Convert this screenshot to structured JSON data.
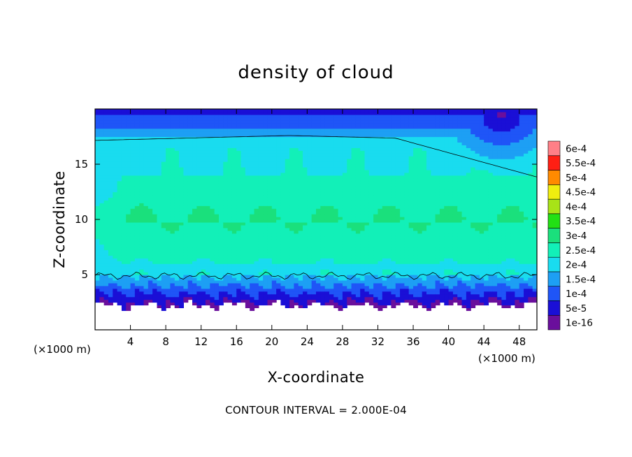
{
  "chart_data": {
    "type": "heatmap",
    "title": "density of cloud",
    "xlabel": "X-coordinate",
    "ylabel": "Z-coordinate",
    "x_unit": "(×1000 m)",
    "y_unit": "(×1000 m)",
    "xlim": [
      0,
      50
    ],
    "ylim": [
      0,
      20
    ],
    "x_ticks": [
      4,
      8,
      12,
      16,
      20,
      24,
      28,
      32,
      36,
      40,
      44,
      48
    ],
    "y_ticks": [
      5,
      10,
      15
    ],
    "x_tick_labels": [
      "4",
      "8",
      "12",
      "16",
      "20",
      "24",
      "28",
      "32",
      "36",
      "40",
      "44",
      "48"
    ],
    "y_tick_labels": [
      "5",
      "10",
      "15"
    ],
    "colorbar": {
      "levels": [
        0,
        5e-05,
        0.0001,
        0.00015,
        0.0002,
        0.00025,
        0.0003,
        0.00035,
        0.0004,
        0.00045,
        0.0005,
        0.00055,
        0.0006
      ],
      "labels": [
        "1e-16",
        "5e-5",
        "1e-4",
        "1.5e-4",
        "2e-4",
        "2.5e-4",
        "3e-4",
        "3.5e-4",
        "4e-4",
        "4.5e-4",
        "5e-4",
        "5.5e-4",
        "6e-4"
      ],
      "colors": [
        "#6a0f9c",
        "#1a0fd6",
        "#1f55f7",
        "#1d9ff4",
        "#19dcef",
        "#12f0b8",
        "#1ae07c",
        "#22e014",
        "#a8e317",
        "#f0ee0f",
        "#ff8a00",
        "#ff1f14",
        "#ff7f87"
      ]
    },
    "contour_level": 0.0002,
    "footer": "CONTOUR INTERVAL = 2.000E-04"
  }
}
